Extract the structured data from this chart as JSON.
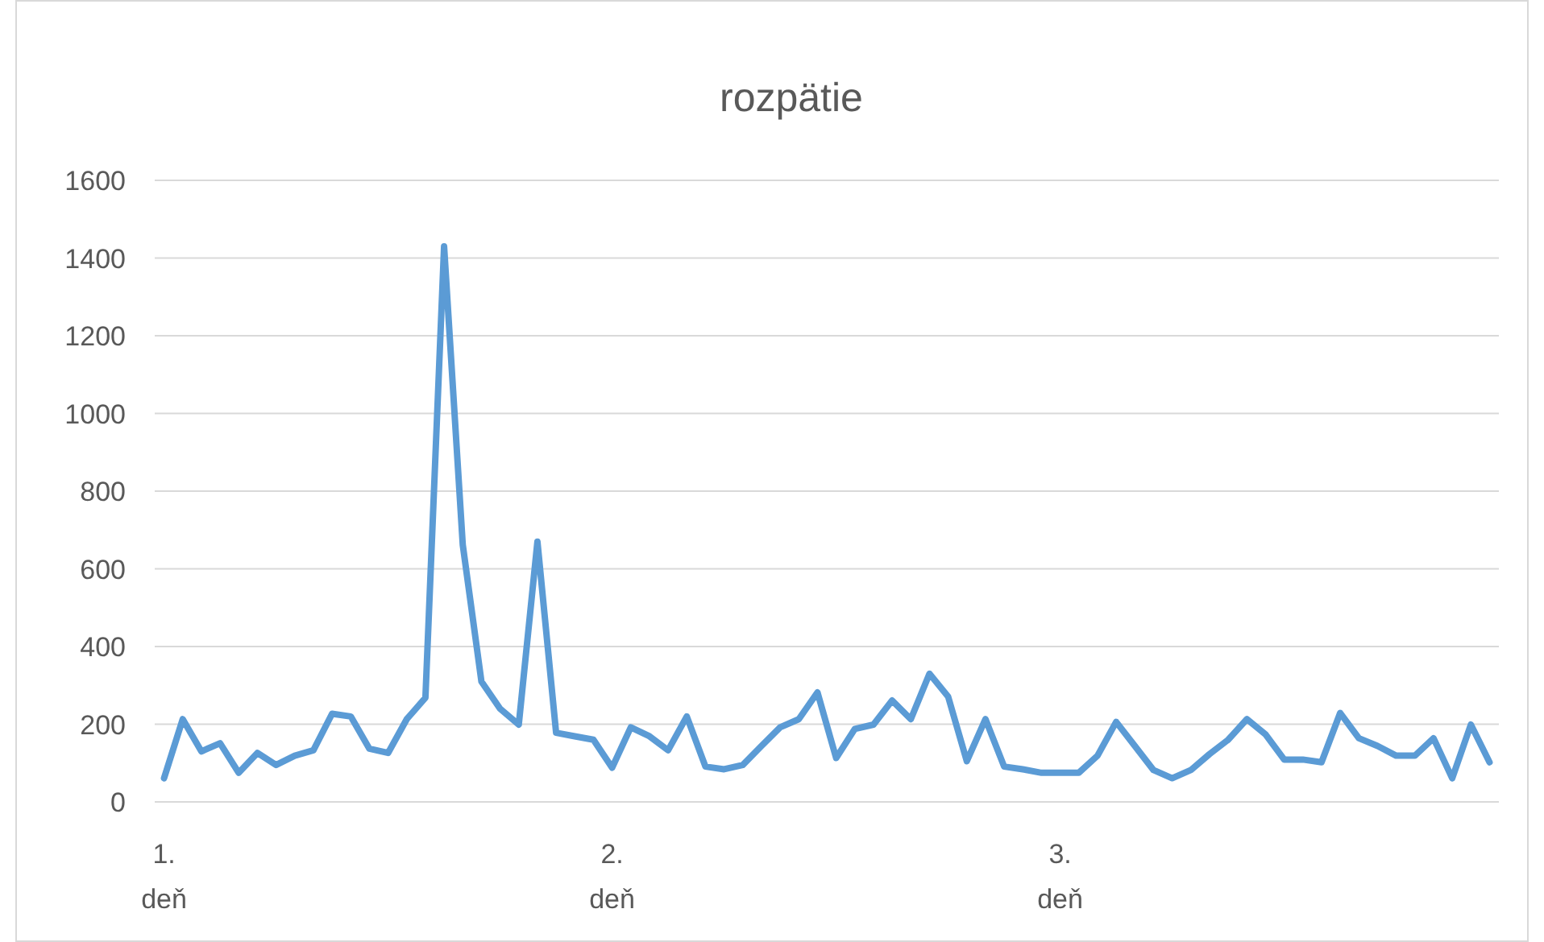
{
  "chart_data": {
    "type": "line",
    "title": "rozpätie",
    "categories": [
      "1. deň",
      null,
      null,
      null,
      null,
      null,
      null,
      null,
      null,
      null,
      null,
      null,
      null,
      null,
      null,
      null,
      null,
      null,
      null,
      null,
      null,
      null,
      null,
      null,
      "2. deň",
      null,
      null,
      null,
      null,
      null,
      null,
      null,
      null,
      null,
      null,
      null,
      null,
      null,
      null,
      null,
      null,
      null,
      null,
      null,
      null,
      null,
      null,
      null,
      "3. deň",
      null,
      null,
      null,
      null,
      null,
      null,
      null,
      null,
      null,
      null,
      null,
      null,
      null,
      null,
      null,
      null,
      null,
      null,
      null,
      null,
      null,
      null,
      null
    ],
    "series": [
      {
        "color": "#5b9bd5",
        "values": [
          61,
          213,
          130,
          151,
          75,
          126,
          95,
          119,
          133,
          227,
          220,
          137,
          126,
          213,
          268,
          1430,
          662,
          310,
          240,
          199,
          670,
          178,
          169,
          160,
          88,
          192,
          169,
          133,
          220,
          91,
          84,
          95,
          144,
          192,
          213,
          282,
          113,
          188,
          199,
          261,
          213,
          330,
          271,
          105,
          213,
          91,
          84,
          75,
          75,
          75,
          119,
          206,
          144,
          82,
          61,
          82,
          123,
          160,
          213,
          174,
          109,
          109,
          102,
          229,
          164,
          144,
          119,
          119,
          164,
          61,
          199,
          102
        ]
      }
    ],
    "ylim": [
      0,
      1600
    ],
    "yticks": [
      0,
      200,
      400,
      600,
      800,
      1000,
      1200,
      1400,
      1600
    ],
    "grid": "y",
    "marker": "none",
    "line_style": "solid"
  }
}
